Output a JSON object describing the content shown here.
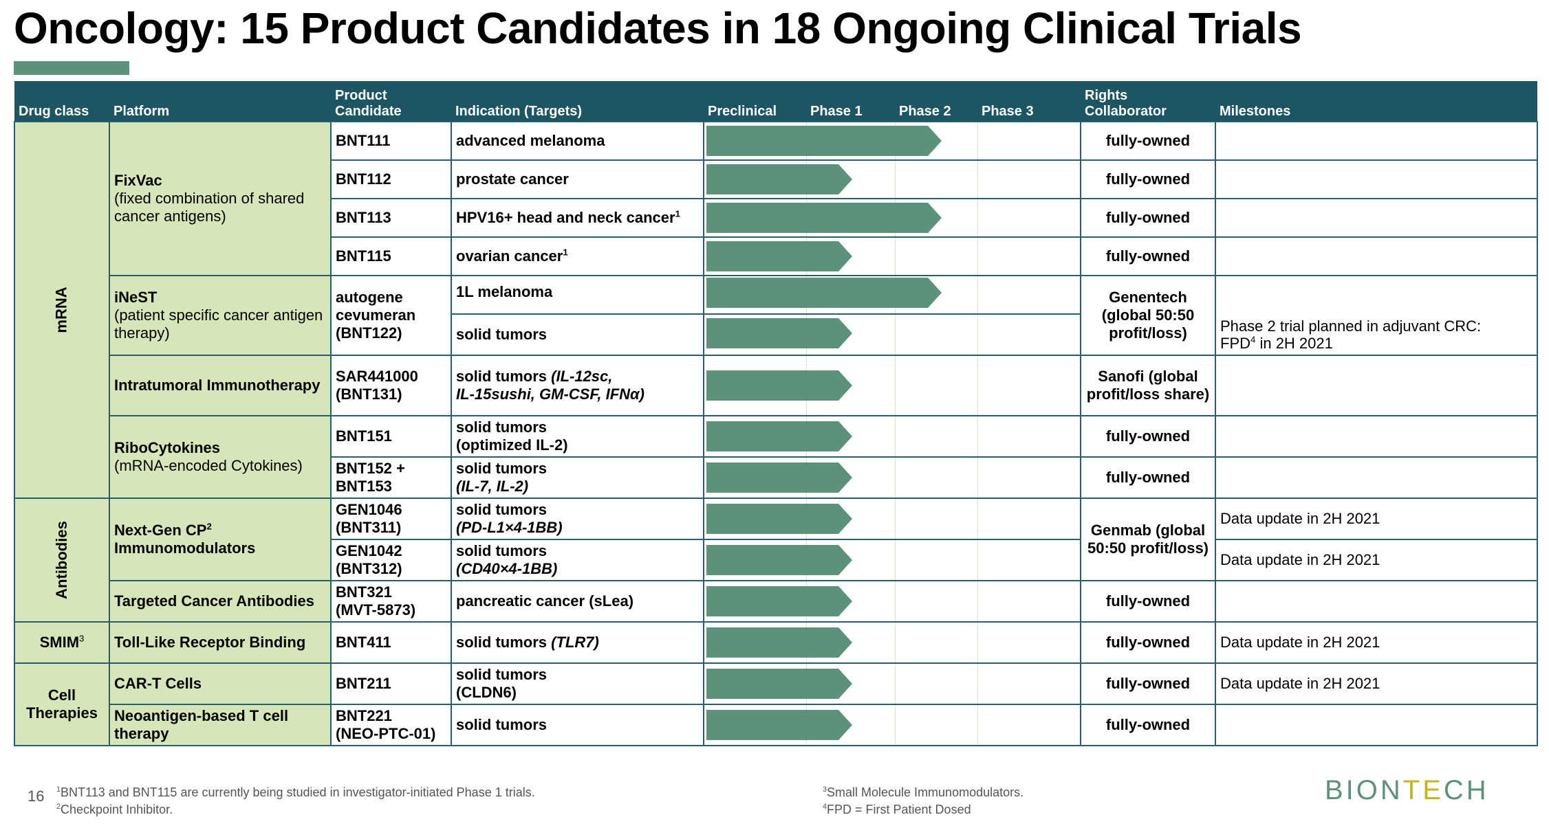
{
  "title": "Oncology: 15 Product Candidates in 18 Ongoing Clinical Trials",
  "headers": {
    "drug_class": "Drug class",
    "platform": "Platform",
    "candidate_1": "Product",
    "candidate_2": "Candidate",
    "indication": "Indication (Targets)",
    "preclinical": "Preclinical",
    "phase1": "Phase 1",
    "phase2": "Phase 2",
    "phase3": "Phase 3",
    "rights_1": "Rights",
    "rights_2": "Collaborator",
    "milestones": "Milestones"
  },
  "drug_classes": {
    "mrna": "mRNA",
    "antibodies": "Antibodies",
    "smim": "SMIM",
    "smim_sup": "3",
    "cell_1": "Cell",
    "cell_2": "Therapies"
  },
  "platforms": {
    "fixvac_name": "FixVac",
    "fixvac_desc": "(fixed combination of shared cancer antigens)",
    "inest_name": "iNeST",
    "inest_desc": "(patient specific cancer antigen therapy)",
    "intratumoral": "Intratumoral Immunotherapy",
    "ribo_name": "RiboCytokines",
    "ribo_desc": "(mRNA-encoded Cytokines)",
    "nextgen": "Next-Gen CP",
    "nextgen_sup": "2",
    "nextgen_2": "Immunomodulators",
    "targeted": "Targeted Cancer Antibodies",
    "toll": "Toll-Like Receptor Binding",
    "cart": "CAR-T Cells",
    "neo": "Neoantigen-based T cell therapy"
  },
  "rows": [
    {
      "candidate": "BNT111",
      "indication": "advanced melanoma",
      "rights": "fully-owned",
      "milestone": "",
      "phase": "Phase 2"
    },
    {
      "candidate": "BNT112",
      "indication": "prostate cancer",
      "rights": "fully-owned",
      "milestone": "",
      "phase": "Phase 1"
    },
    {
      "candidate": "BNT113",
      "indication": "HPV16+ head and neck cancer",
      "ind_sup": "1",
      "rights": "fully-owned",
      "milestone": "",
      "phase": "Phase 2"
    },
    {
      "candidate": "BNT115",
      "indication": "ovarian cancer",
      "ind_sup": "1",
      "rights": "fully-owned",
      "milestone": "",
      "phase": "Phase 1"
    },
    {
      "candidate": "autogene cevumeran (BNT122)",
      "indication": "1L melanoma",
      "rights": "Genentech (global 50:50 profit/loss)",
      "milestone": "",
      "phase": "Phase 2"
    },
    {
      "candidate": "",
      "indication": "solid tumors",
      "rights": "",
      "milestone": "Phase 2 trial planned in adjuvant CRC:",
      "milestone_2": "FPD",
      "milestone_sup": "4",
      "milestone_3": " in 2H 2021",
      "phase": "Phase 1"
    },
    {
      "candidate_1": "SAR441000",
      "candidate_2": "(BNT131)",
      "indication": "solid tumors ",
      "ind_targets_1": "(IL-12sc,",
      "ind_targets_2": "IL-15sushi, GM-CSF, IFNα)",
      "rights": "Sanofi (global profit/loss share)",
      "milestone": "",
      "phase": "Phase 1"
    },
    {
      "candidate": "BNT151",
      "indication_1": "solid tumors",
      "indication_2": "(optimized IL-2)",
      "rights": "fully-owned",
      "milestone": "",
      "phase": "Phase 1"
    },
    {
      "candidate_1": "BNT152 +",
      "candidate_2": "BNT153",
      "indication_1": "solid tumors",
      "indication_2": "(IL-7, IL-2)",
      "rights": "fully-owned",
      "milestone": "",
      "phase": "Phase 1"
    },
    {
      "candidate_1": "GEN1046",
      "candidate_2": "(BNT311)",
      "indication_1": "solid tumors",
      "indication_2": "(PD-L1×4-1BB)",
      "rights": "Genmab (global 50:50 profit/loss)",
      "milestone": "Data update in 2H 2021",
      "phase": "Phase 1"
    },
    {
      "candidate_1": "GEN1042",
      "candidate_2": "(BNT312)",
      "indication_1": "solid tumors",
      "indication_2": "(CD40×4-1BB)",
      "rights": "",
      "milestone": "Data update in 2H 2021",
      "phase": "Phase 1"
    },
    {
      "candidate_1": "BNT321",
      "candidate_2": "(MVT-5873)",
      "indication": "pancreatic cancer (sLea)",
      "rights": "fully-owned",
      "milestone": "",
      "phase": "Phase 1"
    },
    {
      "candidate": "BNT411",
      "indication": "solid tumors ",
      "ind_targets_1": "(TLR7)",
      "rights": "fully-owned",
      "milestone": "Data update in 2H 2021",
      "phase": "Phase 1"
    },
    {
      "candidate": "BNT211",
      "indication_1": "solid tumors",
      "indication_2": "(CLDN6)",
      "rights": "fully-owned",
      "milestone": "Data update in 2H 2021",
      "phase": "Phase 1"
    },
    {
      "candidate_1": "BNT221",
      "candidate_2": "(NEO-PTC-01)",
      "indication": "solid tumors",
      "rights": "fully-owned",
      "milestone": "",
      "phase": "Phase 1"
    }
  ],
  "footer": {
    "page_number": "16",
    "fn1_sup": "1",
    "fn1": "BNT113 and BNT115 are currently being studied in investigator-initiated Phase 1 trials.",
    "fn2_sup": "2",
    "fn2": "Checkpoint Inhibitor.",
    "fn3_sup": "3",
    "fn3": "Small Molecule Immunomodulators.",
    "fn4_sup": "4",
    "fn4": "FPD = First Patient Dosed"
  },
  "logo": {
    "part1": "BION",
    "part2": "TE",
    "part3": "CH"
  },
  "colors": {
    "header_bg": "#1d5563",
    "class_bg": "#d6e6b9",
    "bar": "#5b9279",
    "border": "#24606b"
  }
}
